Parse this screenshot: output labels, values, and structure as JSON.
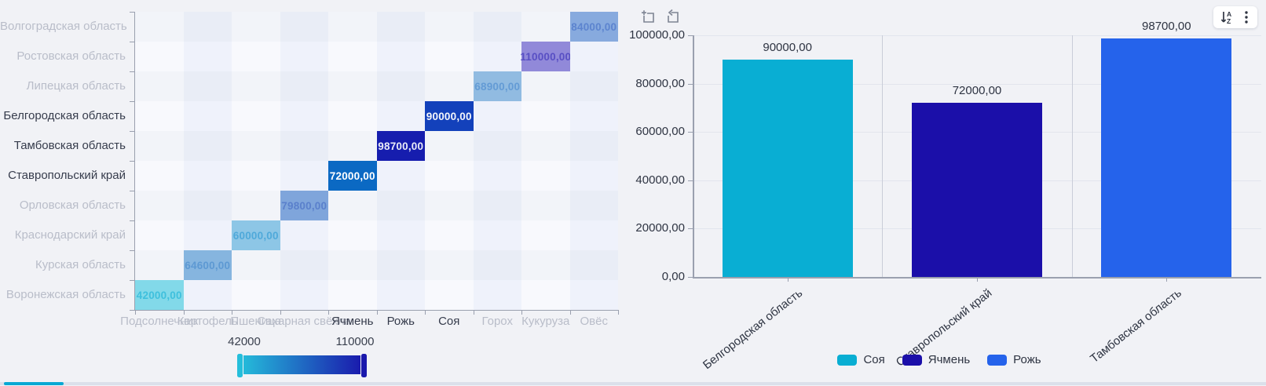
{
  "toolbar": {
    "left_icons": [
      {
        "name": "zoom-select-icon"
      },
      {
        "name": "restore-icon"
      }
    ],
    "right_icons": [
      {
        "name": "sort-icon"
      },
      {
        "name": "more-menu-icon"
      }
    ]
  },
  "chart_data": [
    {
      "type": "heatmap",
      "x_categories": [
        "Подсолнечник",
        "Картофель",
        "Пшеница",
        "Сахарная свёкла",
        "Ячмень",
        "Рожь",
        "Соя",
        "Горох",
        "Кукуруза",
        "Овёс"
      ],
      "y_categories": [
        "Волгоградская область",
        "Ростовская область",
        "Липецкая область",
        "Белгородская область",
        "Тамбовская область",
        "Ставропольский край",
        "Орловская область",
        "Краснодарский край",
        "Курская область",
        "Воронежская область"
      ],
      "selected_x": [
        "Ячмень",
        "Рожь",
        "Соя"
      ],
      "selected_y": [
        "Белгородская область",
        "Тамбовская область",
        "Ставропольский край"
      ],
      "points": [
        {
          "y": "Волгоградская область",
          "x": "Овёс",
          "value": 84000,
          "label": "84000,00",
          "bg": "#87aade",
          "fg": "#5c84cf"
        },
        {
          "y": "Ростовская область",
          "x": "Кукуруза",
          "value": 110000,
          "label": "110000,00",
          "bg": "#9189d9",
          "fg": "#584fc4"
        },
        {
          "y": "Липецкая область",
          "x": "Горох",
          "value": 68900,
          "label": "68900,00",
          "bg": "#91bbe1",
          "fg": "#639bd5"
        },
        {
          "y": "Белгородская область",
          "x": "Соя",
          "value": 90000,
          "label": "90000,00",
          "bg": "#1341bb",
          "fg": "#f4f6fb"
        },
        {
          "y": "Тамбовская область",
          "x": "Рожь",
          "value": 98700,
          "label": "98700,00",
          "bg": "#161dae",
          "fg": "#e9ebf7"
        },
        {
          "y": "Ставропольский край",
          "x": "Ячмень",
          "value": 72000,
          "label": "72000,00",
          "bg": "#0b69c3",
          "fg": "#ffffff"
        },
        {
          "y": "Орловская область",
          "x": "Сахарная свёкла",
          "value": 79800,
          "label": "79800,00",
          "bg": "#7fa5db",
          "fg": "#5a80cc"
        },
        {
          "y": "Краснодарский край",
          "x": "Пшеница",
          "value": 60000,
          "label": "60000,00",
          "bg": "#8dc6e6",
          "fg": "#4fa9da"
        },
        {
          "y": "Курская область",
          "x": "Картофель",
          "value": 64600,
          "label": "64600,00",
          "bg": "#86b5df",
          "fg": "#5d99d3"
        },
        {
          "y": "Воронежская область",
          "x": "Подсолнечник",
          "value": 42000,
          "label": "42000,00",
          "bg": "#82d9e9",
          "fg": "#3fc0dd"
        }
      ],
      "checkerboard_colors": [
        "#f2f4f9",
        "#e9edf6",
        "#f8f9fd",
        "#eff2fb"
      ],
      "visual_map": {
        "min": 42000,
        "max": 110000,
        "min_label": "42000",
        "max_label": "110000",
        "colors": [
          "#25bedb",
          "#1a18ac"
        ]
      }
    },
    {
      "type": "bar",
      "categories": [
        "Белгородская область",
        "Ставропольский край",
        "Тамбовская область"
      ],
      "series": [
        {
          "name": "Соя",
          "category": "Белгородская область",
          "value": 90000,
          "value_label": "90000,00",
          "color": "#09aed3"
        },
        {
          "name": "Ячмень",
          "category": "Ставропольский край",
          "value": 72000,
          "value_label": "72000,00",
          "color": "#1b0fa9"
        },
        {
          "name": "Рожь",
          "category": "Тамбовская область",
          "value": 98700,
          "value_label": "98700,00",
          "color": "#2563eb"
        }
      ],
      "ylim": [
        0,
        100000
      ],
      "y_ticks": [
        "100000,00",
        "80000,00",
        "60000,00",
        "40000,00",
        "20000,00",
        "0,00"
      ],
      "grid": true,
      "legend_position": "bottom",
      "legend": [
        {
          "label": "Соя",
          "color": "#09aed3"
        },
        {
          "label": "Ячмень",
          "color": "#1b0fa9"
        },
        {
          "label": "Рожь",
          "color": "#2563eb"
        }
      ]
    }
  ]
}
